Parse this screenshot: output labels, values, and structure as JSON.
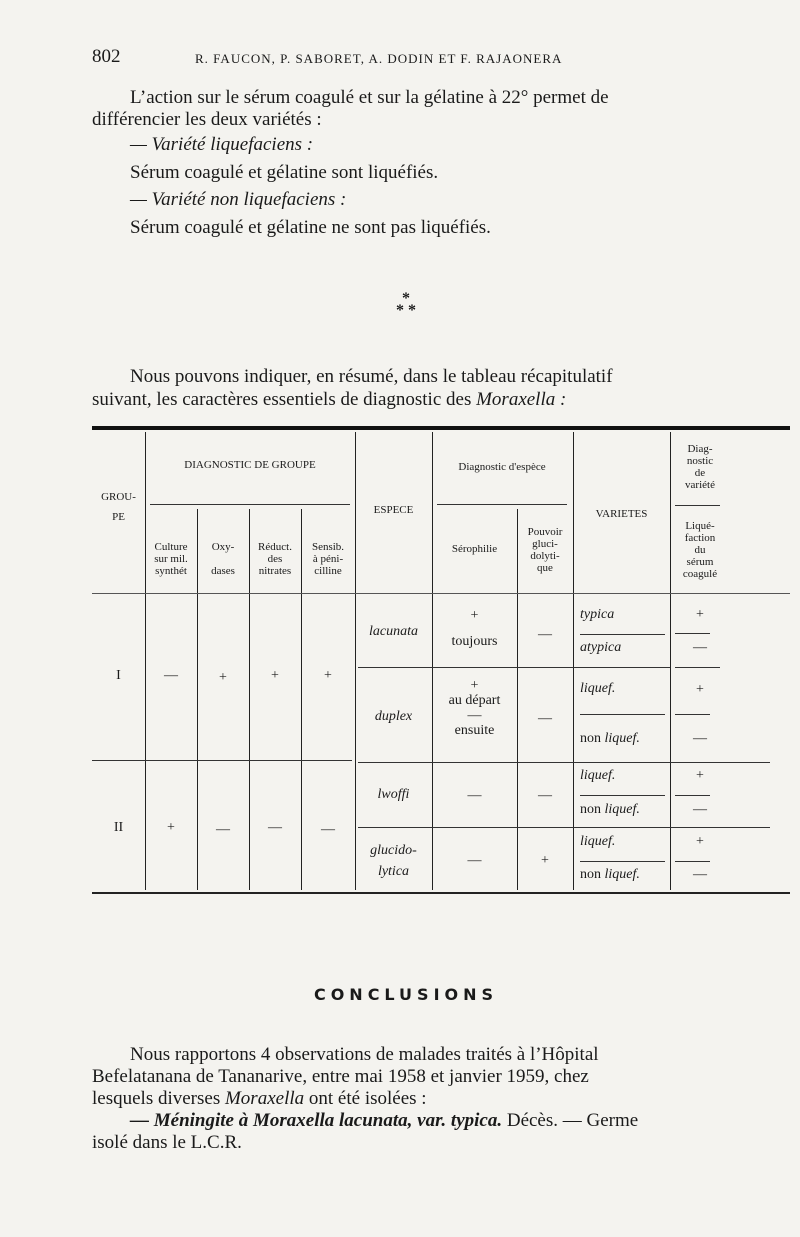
{
  "header": {
    "page_number": "802",
    "running_head": "R. FAUCON, P. SABORET, A. DODIN ET F. RAJAONERA"
  },
  "intro": {
    "line1": "L’action sur le sérum coagulé et sur la gélatine à 22° permet de",
    "line2": "différencier les deux variétés :",
    "var1_title": "— Variété liquefaciens :",
    "var1_text": "Sérum coagulé et gélatine sont liquéfiés.",
    "var2_title": "— Variété non liquefaciens :",
    "var2_text": "Sérum coagulé et gélatine ne sont pas liquéfiés."
  },
  "asterism": {
    "top": "*",
    "bottom": "* *"
  },
  "summary": {
    "line1": "Nous pouvons indiquer, en résumé, dans le tableau récapitulatif",
    "line2_a": "suivant, les caractères essentiels de diagnostic des ",
    "line2_b": "Moraxella :"
  },
  "table": {
    "headers": {
      "groupe_1": "GROU-",
      "groupe_2": "PE",
      "diag_groupe": "DIAGNOSTIC DE GROUPE",
      "culture": [
        "Culture",
        "sur mil.",
        "synthét"
      ],
      "oxydases": [
        "Oxy-",
        "",
        "dases"
      ],
      "reduct": [
        "Réduct.",
        "des",
        "nitrates"
      ],
      "sensib": [
        "Sensib.",
        "à péni-",
        "cilline"
      ],
      "espece": "ESPECE",
      "diag_espece": "Diagnostic d'espèce",
      "serophilie": "Sérophilie",
      "pouvoir": [
        "Pouvoir",
        "gluci-",
        "dolyti-",
        "que"
      ],
      "varietes": "VARIETES",
      "diag_variete": [
        "Diag-",
        "nostic",
        "de",
        "variété"
      ],
      "liquefaction": [
        "Liqué-",
        "faction",
        "du",
        "sérum",
        "coagulé"
      ]
    },
    "groups": [
      {
        "label": "I",
        "culture": "—",
        "oxydases": "+",
        "reduct": "+",
        "sensib": "+"
      },
      {
        "label": "II",
        "culture": "+",
        "oxydases": "—",
        "reduct": "—",
        "sensib": "—"
      }
    ],
    "species": [
      {
        "name": "lacunata",
        "serophilie": [
          "+",
          "toujours"
        ],
        "pouvoir": "—",
        "varieties": [
          {
            "name": "typica",
            "liq": "+"
          },
          {
            "name": "atypica",
            "liq": "—"
          }
        ]
      },
      {
        "name": "duplex",
        "serophilie": [
          "+",
          "au départ",
          "—",
          "ensuite"
        ],
        "pouvoir": "—",
        "varieties": [
          {
            "name": "liquef.",
            "liq": "+"
          },
          {
            "name_a": "non",
            "name_b": "liquef.",
            "liq": "—"
          }
        ]
      },
      {
        "name": "lwoffi",
        "serophilie": [
          "—"
        ],
        "pouvoir": "—",
        "varieties": [
          {
            "name": "liquef.",
            "liq": "+"
          },
          {
            "name_a": "non",
            "name_b": "liquef.",
            "liq": "—"
          }
        ]
      },
      {
        "name_1": "glucido-",
        "name_2": "lytica",
        "serophilie": [
          "—"
        ],
        "pouvoir": "+",
        "varieties": [
          {
            "name": "liquef.",
            "liq": "+"
          },
          {
            "name_a": "non",
            "name_b": "liquef.",
            "liq": "—"
          }
        ]
      }
    ]
  },
  "conclusions": {
    "title": "CONCLUSIONS",
    "line1": "Nous rapportons 4 observations de malades traités à l’Hôpital",
    "line2": "Befelatanana de Tananarive, entre mai 1958 et janvier 1959, chez",
    "line3_a": "lesquels diverses ",
    "line3_b": "Moraxella",
    "line3_c": " ont été isolées :",
    "line4_a": "— Méningite à Moraxella lacunata, var. typica.",
    "line4_b": " Décès. — Germe",
    "line5": "isolé dans le L.C.R."
  }
}
